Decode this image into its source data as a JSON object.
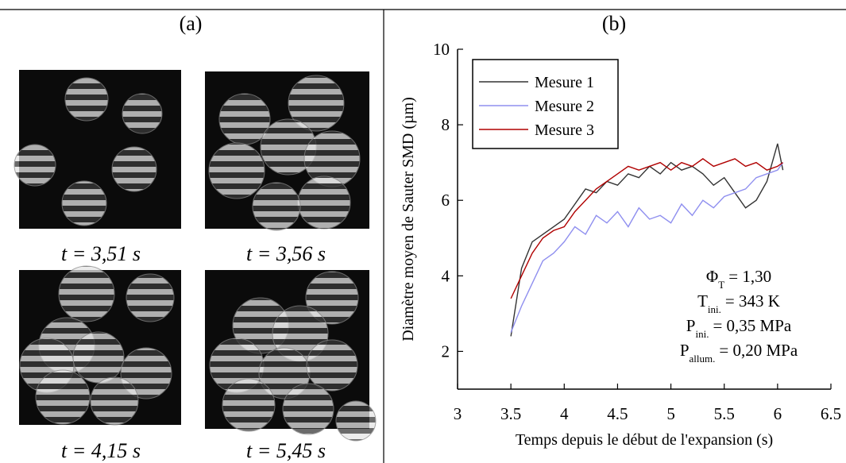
{
  "panel_a": {
    "label": "(a)",
    "captions": [
      "t = 3,51 s",
      "t = 3,56 s",
      "t = 4,15 s",
      "t = 5,45 s"
    ]
  },
  "chart_data": {
    "type": "line",
    "label": "(b)",
    "x_label": "Temps depuis le début de l'expansion (s)",
    "y_label": "Diamètre moyen de Sauter SMD (µm)",
    "xlim": [
      3,
      6.5
    ],
    "xticks": [
      3,
      3.5,
      4,
      4.5,
      5,
      5.5,
      6,
      6.5
    ],
    "ylim": [
      1,
      10
    ],
    "yticks": [
      2,
      4,
      6,
      8,
      10
    ],
    "legend": "upper left",
    "x": [
      3.5,
      3.6,
      3.7,
      3.8,
      3.9,
      4.0,
      4.1,
      4.2,
      4.3,
      4.4,
      4.5,
      4.6,
      4.7,
      4.8,
      4.9,
      5.0,
      5.1,
      5.2,
      5.3,
      5.4,
      5.5,
      5.6,
      5.7,
      5.8,
      5.9,
      6.0,
      6.05
    ],
    "series": [
      {
        "name": "Mesure 1",
        "color": "#333333",
        "values": [
          2.4,
          4.2,
          4.9,
          5.1,
          5.3,
          5.5,
          5.9,
          6.3,
          6.2,
          6.5,
          6.4,
          6.7,
          6.6,
          6.9,
          6.7,
          7.0,
          6.8,
          6.9,
          6.7,
          6.4,
          6.6,
          6.2,
          5.8,
          6.0,
          6.5,
          7.5,
          6.8
        ]
      },
      {
        "name": "Mesure 2",
        "color": "#8f8fef",
        "values": [
          2.5,
          3.2,
          3.8,
          4.4,
          4.6,
          4.9,
          5.3,
          5.1,
          5.6,
          5.4,
          5.7,
          5.3,
          5.8,
          5.5,
          5.6,
          5.4,
          5.9,
          5.6,
          6.0,
          5.8,
          6.1,
          6.2,
          6.3,
          6.6,
          6.7,
          6.8,
          7.0
        ]
      },
      {
        "name": "Mesure 3",
        "color": "#b00000",
        "values": [
          3.4,
          4.0,
          4.6,
          5.0,
          5.2,
          5.3,
          5.7,
          6.0,
          6.3,
          6.5,
          6.7,
          6.9,
          6.8,
          6.9,
          7.0,
          6.8,
          7.0,
          6.9,
          7.1,
          6.9,
          7.0,
          7.1,
          6.9,
          7.0,
          6.8,
          6.9,
          7.0
        ]
      }
    ],
    "annotations": [
      {
        "symbol": "Φ",
        "sub": "T",
        "text": "= 1,30"
      },
      {
        "symbol": "T",
        "sub": "ini.",
        "text": "= 343 K"
      },
      {
        "symbol": "P",
        "sub": "ini.",
        "text": "= 0,35 MPa"
      },
      {
        "symbol": "P",
        "sub": "allum.",
        "text": "= 0,20 MPa"
      }
    ]
  }
}
